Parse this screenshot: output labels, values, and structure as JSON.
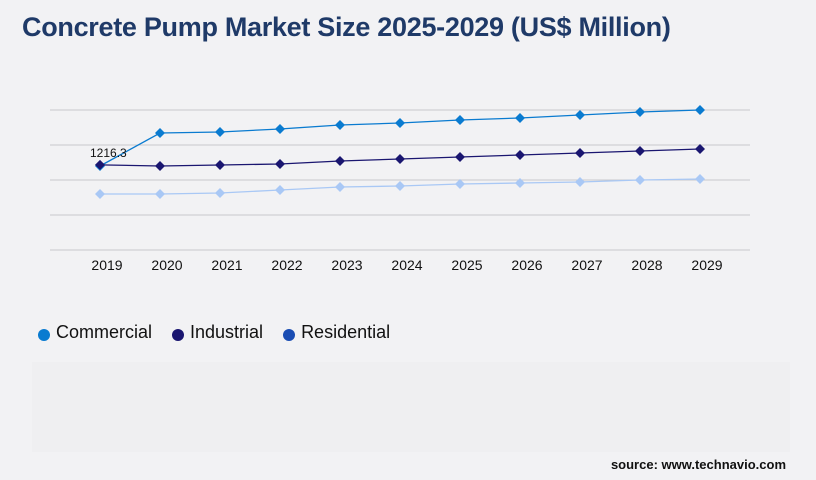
{
  "chart_data": {
    "type": "line",
    "title": "Concrete Pump Market Size 2025-2029 (US$ Million)",
    "categories": [
      "2019",
      "2020",
      "2021",
      "2022",
      "2023",
      "2024",
      "2025",
      "2026",
      "2027",
      "2028",
      "2029"
    ],
    "ylim": [
      0,
      2000
    ],
    "grid": true,
    "legend_position": "bottom-left",
    "series": [
      {
        "name": "Commercial",
        "color": "#0a7bd0",
        "legend_color": "#0a7bd0",
        "values": [
          1200,
          1671,
          1686,
          1729,
          1786,
          1814,
          1857,
          1886,
          1929,
          1971,
          2000
        ]
      },
      {
        "name": "Industrial",
        "color": "#1a1670",
        "legend_color": "#1a1670",
        "values": [
          1216.3,
          1200,
          1214,
          1229,
          1271,
          1300,
          1329,
          1357,
          1386,
          1414,
          1443
        ]
      },
      {
        "name": "Residential",
        "color": "#a9c8f5",
        "legend_color": "#1a4db3",
        "values": [
          800,
          800,
          814,
          857,
          900,
          914,
          943,
          957,
          971,
          1000,
          1014
        ]
      }
    ],
    "annotations": [
      {
        "series": "Industrial",
        "category": "2019",
        "text": "1216.3"
      }
    ]
  },
  "source": "source: www.technavio.com"
}
